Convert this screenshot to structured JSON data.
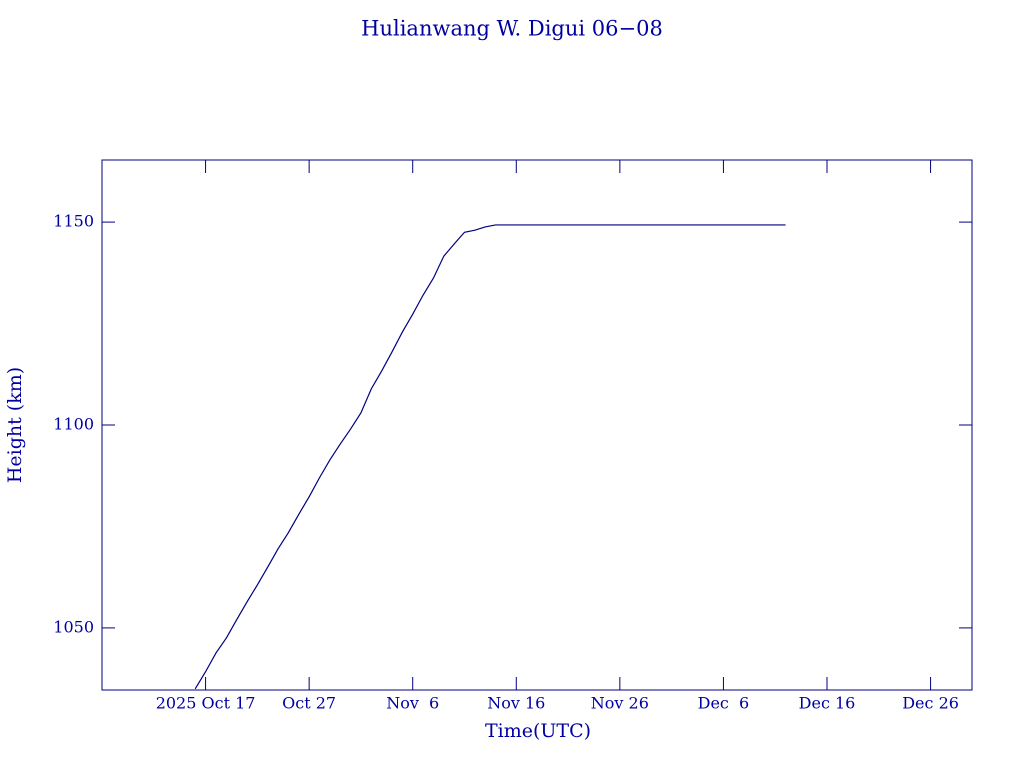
{
  "chart_data": {
    "type": "line",
    "title": "Hulianwang W. Digui 06−08",
    "x_label": "Time(UTC)",
    "y_label": "Height (km)",
    "x": [
      "2025-10-16",
      "2025-10-17",
      "2025-10-18",
      "2025-10-19",
      "2025-10-20",
      "2025-10-21",
      "2025-10-22",
      "2025-10-23",
      "2025-10-24",
      "2025-10-25",
      "2025-10-26",
      "2025-10-27",
      "2025-10-28",
      "2025-10-29",
      "2025-10-30",
      "2025-10-31",
      "2025-11-01",
      "2025-11-02",
      "2025-11-03",
      "2025-11-04",
      "2025-11-05",
      "2025-11-06",
      "2025-11-07",
      "2025-11-08",
      "2025-11-09",
      "2025-11-10",
      "2025-11-11",
      "2025-11-12",
      "2025-11-13",
      "2025-11-14",
      "2025-12-12"
    ],
    "series": [
      {
        "color": "#000080",
        "values": [
          1035,
          1039.2,
          1043.8,
          1047.5,
          1052,
          1056.4,
          1060.6,
          1065,
          1069.5,
          1073.5,
          1078,
          1082.3,
          1087,
          1091.4,
          1095.3,
          1099,
          1103,
          1108.9,
          1113.3,
          1118,
          1122.9,
          1127.3,
          1132,
          1136.2,
          1141.6,
          1144.6,
          1147.5,
          1148,
          1148.8,
          1149.3,
          1149.3
        ]
      }
    ],
    "xlim": [
      "2025-10-07",
      "2025-12-30"
    ],
    "xticks": [
      {
        "value": "2025-10-17",
        "label": "2025 Oct 17"
      },
      {
        "value": "2025-10-27",
        "label": "Oct 27"
      },
      {
        "value": "2025-11-06",
        "label": "Nov  6"
      },
      {
        "value": "2025-11-16",
        "label": "Nov 16"
      },
      {
        "value": "2025-11-26",
        "label": "Nov 26"
      },
      {
        "value": "2025-12-06",
        "label": "Dec  6"
      },
      {
        "value": "2025-12-16",
        "label": "Dec 16"
      },
      {
        "value": "2025-12-26",
        "label": "Dec 26"
      }
    ],
    "ylim": [
      1034.7,
      1165.3
    ],
    "yticks": [
      1050,
      1100,
      1150
    ],
    "grid": false
  }
}
